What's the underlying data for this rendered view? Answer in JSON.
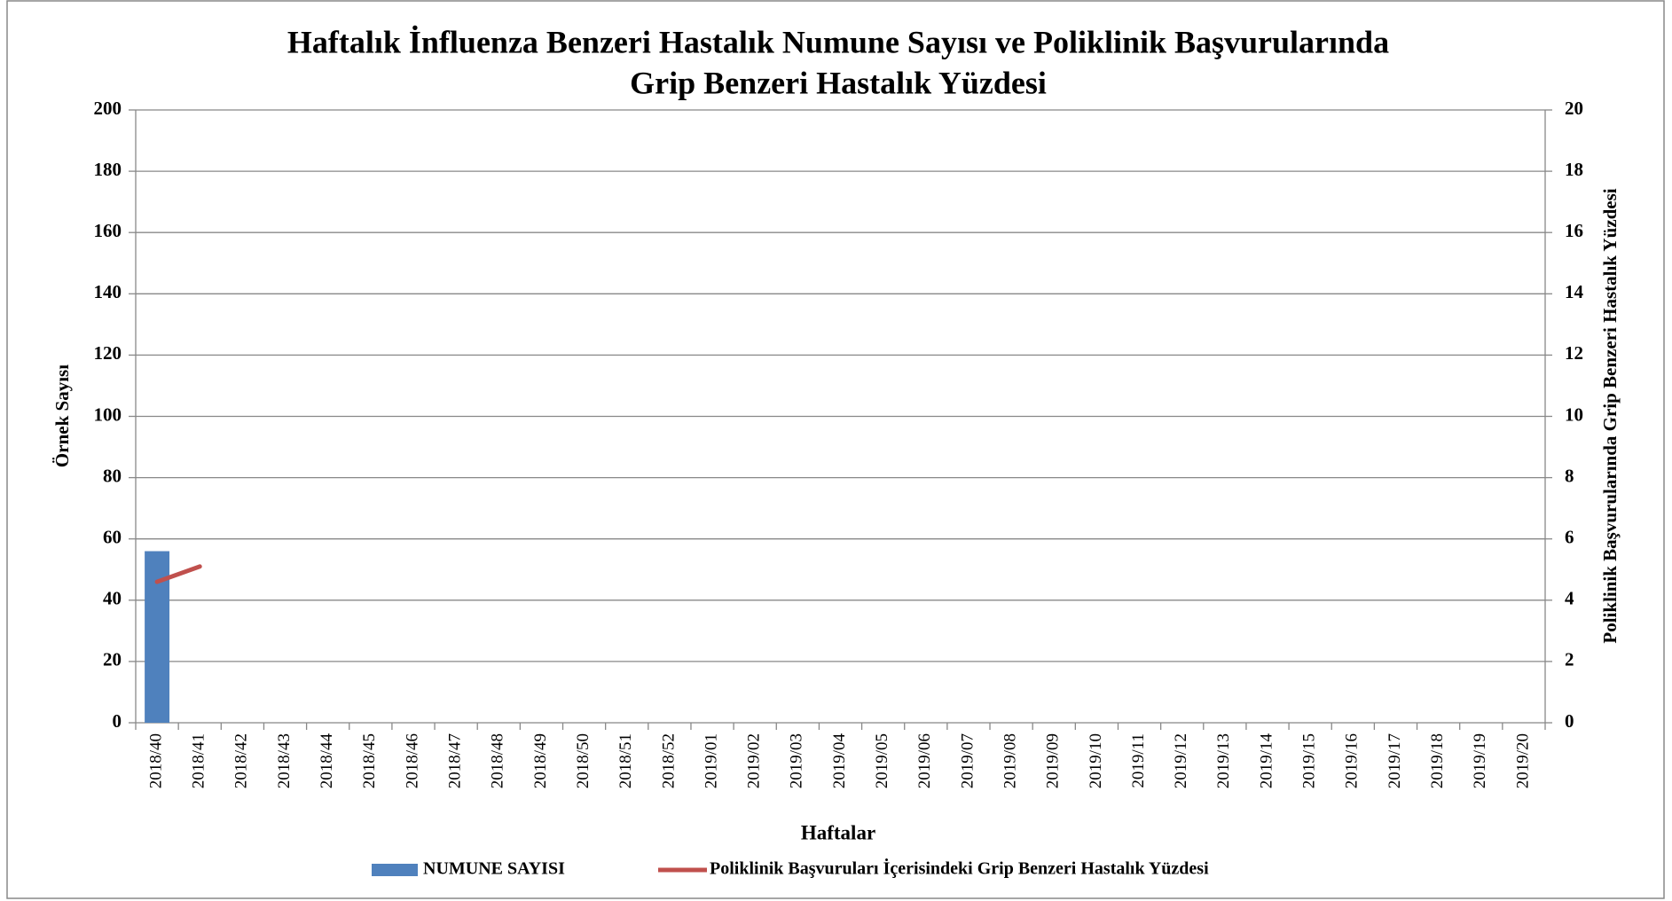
{
  "chart_data": {
    "type": "bar",
    "title": [
      "Haftalık İnfluenza Benzeri Hastalık Numune Sayısı ve Poliklinik Başvurularında",
      "Grip Benzeri Hastalık Yüzdesi"
    ],
    "x_label": "Haftalar",
    "y_label": "Örnek Sayısı",
    "y2_label": "Poliklinik Başvurularında Grip Benzeri Hastalık Yüzdesi",
    "categories": [
      "2018/40",
      "2018/41",
      "2018/42",
      "2018/43",
      "2018/44",
      "2018/45",
      "2018/46",
      "2018/47",
      "2018/48",
      "2018/49",
      "2018/50",
      "2018/51",
      "2018/52",
      "2019/01",
      "2019/02",
      "2019/03",
      "2019/04",
      "2019/05",
      "2019/06",
      "2019/07",
      "2019/08",
      "2019/09",
      "2019/10",
      "2019/11",
      "2019/12",
      "2019/13",
      "2019/14",
      "2019/15",
      "2019/16",
      "2019/17",
      "2019/18",
      "2019/19",
      "2019/20"
    ],
    "series": [
      {
        "name": "NUMUNE SAYISI",
        "type": "bar",
        "color": "#4f81bd",
        "values": [
          56,
          null,
          null,
          null,
          null,
          null,
          null,
          null,
          null,
          null,
          null,
          null,
          null,
          null,
          null,
          null,
          null,
          null,
          null,
          null,
          null,
          null,
          null,
          null,
          null,
          null,
          null,
          null,
          null,
          null,
          null,
          null,
          null
        ]
      },
      {
        "name": "Poliklinik Başvuruları İçerisindeki Grip Benzeri Hastalık Yüzdesi",
        "type": "line",
        "axis": "y2",
        "color": "#c0504d",
        "values": [
          4.6,
          5.1,
          null,
          null,
          null,
          null,
          null,
          null,
          null,
          null,
          null,
          null,
          null,
          null,
          null,
          null,
          null,
          null,
          null,
          null,
          null,
          null,
          null,
          null,
          null,
          null,
          null,
          null,
          null,
          null,
          null,
          null,
          null
        ]
      }
    ],
    "ylim": [
      0,
      200
    ],
    "yticks": [
      0,
      20,
      40,
      60,
      80,
      100,
      120,
      140,
      160,
      180,
      200
    ],
    "y2lim": [
      0,
      20
    ],
    "y2ticks": [
      0,
      2,
      4,
      6,
      8,
      10,
      12,
      14,
      16,
      18,
      20
    ],
    "grid": true,
    "legend": "bottom"
  }
}
